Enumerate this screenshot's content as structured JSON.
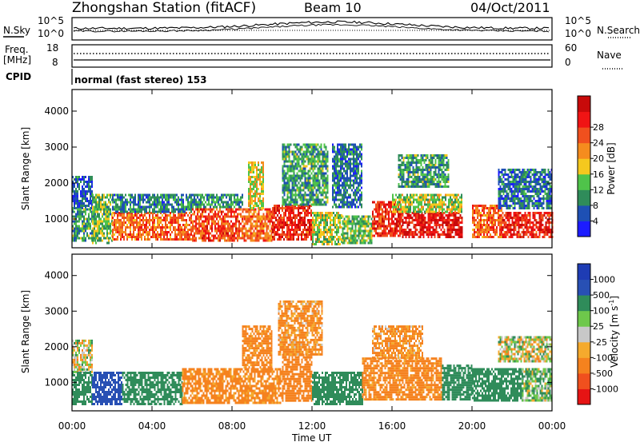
{
  "header": {
    "station": "Zhongshan Station (fitACF)",
    "beam": "Beam 10",
    "date": "04/Oct/2011",
    "cpid_label": "CPID",
    "cpid_value": "normal (fast stereo) 153"
  },
  "noise_panel": {
    "left_label": "N.Sky",
    "right_label": "N.Search",
    "left_ticks": [
      "10^5",
      "10^0"
    ],
    "right_ticks": [
      "10^5",
      "10^0"
    ]
  },
  "freq_panel": {
    "left_label_line1": "Freq.",
    "left_label_line2": "[MHz]",
    "right_label": "Nave",
    "left_ticks": [
      "18",
      "8"
    ],
    "right_ticks": [
      "60",
      "0"
    ]
  },
  "colors": {
    "power_scale": [
      "#1c1cff",
      "#1e50b4",
      "#2f8c5a",
      "#4fc34a",
      "#f5c81e",
      "#f58c1e",
      "#f0501e",
      "#f01414",
      "#c80a0a"
    ],
    "velocity_scale": [
      "#e61414",
      "#f0501e",
      "#f5821e",
      "#f5aa2d",
      "#c8c8c8",
      "#6ec84b",
      "#2f8c5a",
      "#2850b4",
      "#1e3cb4"
    ]
  },
  "chart_data": [
    {
      "type": "heatmap",
      "name": "power",
      "ylabel": "Slant Range [km]",
      "yticks": [
        "1000",
        "2000",
        "3000",
        "4000"
      ],
      "ylim": [
        200,
        4600
      ],
      "xlim_hours": [
        0,
        24
      ],
      "colorbar_label": "Power [dB]",
      "colorbar_ticks": [
        "4",
        "8",
        "12",
        "16",
        "20",
        "24",
        "28"
      ],
      "colorbar_range": [
        0,
        32
      ],
      "blocks": [
        {
          "x": [
            0.0,
            1.0
          ],
          "y": [
            1300,
            2200
          ],
          "v": 6
        },
        {
          "x": [
            0.0,
            1.2
          ],
          "y": [
            400,
            1300
          ],
          "v": 10
        },
        {
          "x": [
            1.0,
            2.0
          ],
          "y": [
            300,
            1700
          ],
          "v": 12
        },
        {
          "x": [
            2.0,
            6.0
          ],
          "y": [
            400,
            1200
          ],
          "v": 22
        },
        {
          "x": [
            2.0,
            6.0
          ],
          "y": [
            1200,
            1700
          ],
          "v": 8
        },
        {
          "x": [
            6.0,
            8.5
          ],
          "y": [
            400,
            1300
          ],
          "v": 24
        },
        {
          "x": [
            6.0,
            8.5
          ],
          "y": [
            1300,
            1700
          ],
          "v": 9
        },
        {
          "x": [
            8.5,
            10.0
          ],
          "y": [
            400,
            1300
          ],
          "v": 22
        },
        {
          "x": [
            8.8,
            9.6
          ],
          "y": [
            1300,
            2600
          ],
          "v": 16
        },
        {
          "x": [
            10.0,
            12.0
          ],
          "y": [
            400,
            1400
          ],
          "v": 26
        },
        {
          "x": [
            10.5,
            12.8
          ],
          "y": [
            1400,
            3100
          ],
          "v": 10
        },
        {
          "x": [
            12.0,
            13.5
          ],
          "y": [
            300,
            1200
          ],
          "v": 14
        },
        {
          "x": [
            13.5,
            15.0
          ],
          "y": [
            300,
            1100
          ],
          "v": 12
        },
        {
          "x": [
            13.0,
            14.5
          ],
          "y": [
            1300,
            3100
          ],
          "v": 7
        },
        {
          "x": [
            15.0,
            16.5
          ],
          "y": [
            500,
            1500
          ],
          "v": 26
        },
        {
          "x": [
            16.5,
            19.5
          ],
          "y": [
            500,
            1200
          ],
          "v": 28
        },
        {
          "x": [
            16.0,
            19.5
          ],
          "y": [
            1200,
            1700
          ],
          "v": 14
        },
        {
          "x": [
            16.3,
            18.8
          ],
          "y": [
            1900,
            2800
          ],
          "v": 10
        },
        {
          "x": [
            20.0,
            21.5
          ],
          "y": [
            500,
            1400
          ],
          "v": 22
        },
        {
          "x": [
            21.5,
            24.0
          ],
          "y": [
            500,
            1200
          ],
          "v": 26
        },
        {
          "x": [
            21.3,
            24.0
          ],
          "y": [
            1300,
            2400
          ],
          "v": 7
        }
      ]
    },
    {
      "type": "heatmap",
      "name": "velocity",
      "ylabel": "Slant Range [km]",
      "yticks": [
        "1000",
        "2000",
        "3000",
        "4000"
      ],
      "ylim": [
        200,
        4600
      ],
      "xlim_hours": [
        0,
        24
      ],
      "xticks": [
        "00:00",
        "04:00",
        "08:00",
        "12:00",
        "16:00",
        "20:00",
        "00:00"
      ],
      "xlabel": "Time UT",
      "colorbar_label": "Velocity [m s^-1]",
      "colorbar_ticks": [
        "-1000",
        "-500",
        "-100",
        "-25",
        "25",
        "100",
        "500",
        "1000"
      ],
      "blocks": [
        {
          "x": [
            0.0,
            1.0
          ],
          "y": [
            1300,
            2200
          ],
          "v": 0
        },
        {
          "x": [
            0.0,
            1.0
          ],
          "y": [
            400,
            1300
          ],
          "v": 300
        },
        {
          "x": [
            1.0,
            2.5
          ],
          "y": [
            400,
            1300
          ],
          "v": 800
        },
        {
          "x": [
            2.5,
            5.5
          ],
          "y": [
            400,
            1300
          ],
          "v": 300
        },
        {
          "x": [
            5.5,
            10.5
          ],
          "y": [
            400,
            1400
          ],
          "v": -200
        },
        {
          "x": [
            8.5,
            10.0
          ],
          "y": [
            1400,
            2600
          ],
          "v": -200
        },
        {
          "x": [
            10.5,
            12.0
          ],
          "y": [
            500,
            1800
          ],
          "v": -300
        },
        {
          "x": [
            10.3,
            12.5
          ],
          "y": [
            1800,
            3300
          ],
          "v": -150
        },
        {
          "x": [
            12.0,
            14.5
          ],
          "y": [
            400,
            1300
          ],
          "v": 300
        },
        {
          "x": [
            14.5,
            18.5
          ],
          "y": [
            500,
            1700
          ],
          "v": -200
        },
        {
          "x": [
            15.0,
            17.5
          ],
          "y": [
            1700,
            2600
          ],
          "v": -150
        },
        {
          "x": [
            18.5,
            20.0
          ],
          "y": [
            500,
            1500
          ],
          "v": 300
        },
        {
          "x": [
            20.0,
            22.5
          ],
          "y": [
            500,
            1400
          ],
          "v": 300
        },
        {
          "x": [
            22.5,
            24.0
          ],
          "y": [
            500,
            1400
          ],
          "v": 100
        },
        {
          "x": [
            21.3,
            24.0
          ],
          "y": [
            1600,
            2300
          ],
          "v": 0
        }
      ]
    }
  ]
}
